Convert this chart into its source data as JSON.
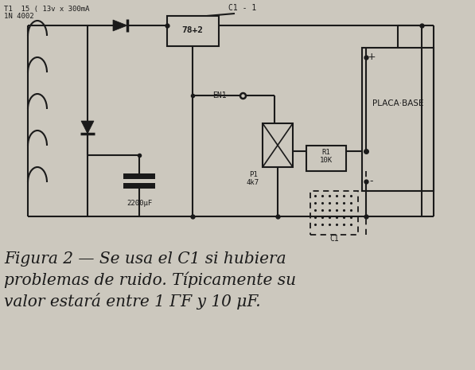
{
  "bg_color": "#ccc8be",
  "line_color": "#1a1a1a",
  "lw": 1.5,
  "fig_width": 5.97,
  "fig_height": 4.65,
  "dpi": 100,
  "caption_line1": "Figura 2 — Se usa el C1 si hubiera",
  "caption_line2": "problemas de ruido. Típicamente su",
  "caption_line3": "valor estará entre 1 ΓF y 10 μF.",
  "caption_fontsize": 14.5,
  "label_T1": "T1  15 ( 13v x 300mA",
  "label_IN": "1N 4002",
  "label_C1dash1": "C1 - 1",
  "label_7812": "78+2",
  "label_EN1": "EN1",
  "label_P1": "P1",
  "label_4k7": "4k7",
  "label_R1": "R1",
  "label_10K": "10K",
  "label_2200uF": "2200μF",
  "label_C1": "C1",
  "label_PLACA": "PLACA·BASE"
}
